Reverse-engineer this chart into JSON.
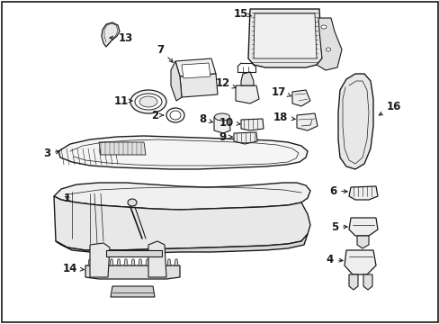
{
  "bg_color": "#ffffff",
  "line_color": "#1a1a1a",
  "fig_width": 4.89,
  "fig_height": 3.6,
  "dpi": 100,
  "label_fontsize": 8.5,
  "border_linewidth": 1.2
}
